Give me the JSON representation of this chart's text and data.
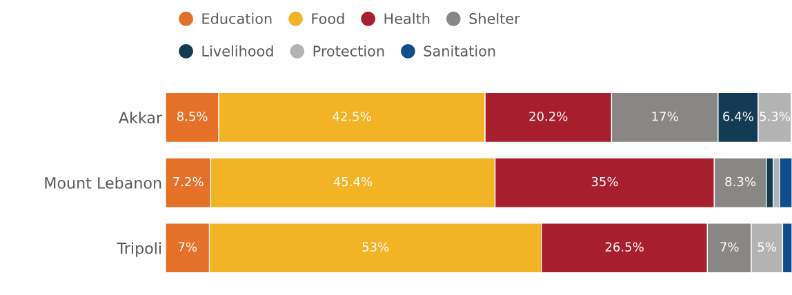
{
  "chart_data": {
    "type": "bar",
    "orientation": "horizontal",
    "stacked": true,
    "legend": "top left",
    "grid": false,
    "tick_labels": "y",
    "categories": [
      "Akkar",
      "Mount Lebanon",
      "Tripoli"
    ],
    "series": [
      {
        "name": "Education",
        "color": "#e57028",
        "values": [
          8.5,
          7.2,
          7
        ],
        "value_labels": [
          "8.5%",
          "7.2%",
          "7%"
        ]
      },
      {
        "name": "Food",
        "color": "#f2b324",
        "values": [
          42.5,
          45.4,
          53
        ],
        "value_labels": [
          "42.5%",
          "45.4%",
          "53%"
        ]
      },
      {
        "name": "Health",
        "color": "#a71f2e",
        "values": [
          20.2,
          35,
          26.5
        ],
        "value_labels": [
          "20.2%",
          "35%",
          "26.5%"
        ]
      },
      {
        "name": "Shelter",
        "color": "#898785",
        "values": [
          17,
          8.3,
          7
        ],
        "value_labels": [
          "17%",
          "8.3%",
          "7%"
        ]
      },
      {
        "name": "Livelihood",
        "color": "#133b54",
        "values": [
          6.4,
          1.1,
          null
        ],
        "value_labels": [
          "6.4%",
          null,
          null
        ]
      },
      {
        "name": "Protection",
        "color": "#b2b3b2",
        "values": [
          5.3,
          1,
          5
        ],
        "value_labels": [
          "5.3%",
          null,
          "5%"
        ]
      },
      {
        "name": "Sanitation",
        "color": "#104e8b",
        "values": [
          null,
          2,
          1.5
        ],
        "value_labels": [
          null,
          null,
          null
        ]
      }
    ]
  }
}
